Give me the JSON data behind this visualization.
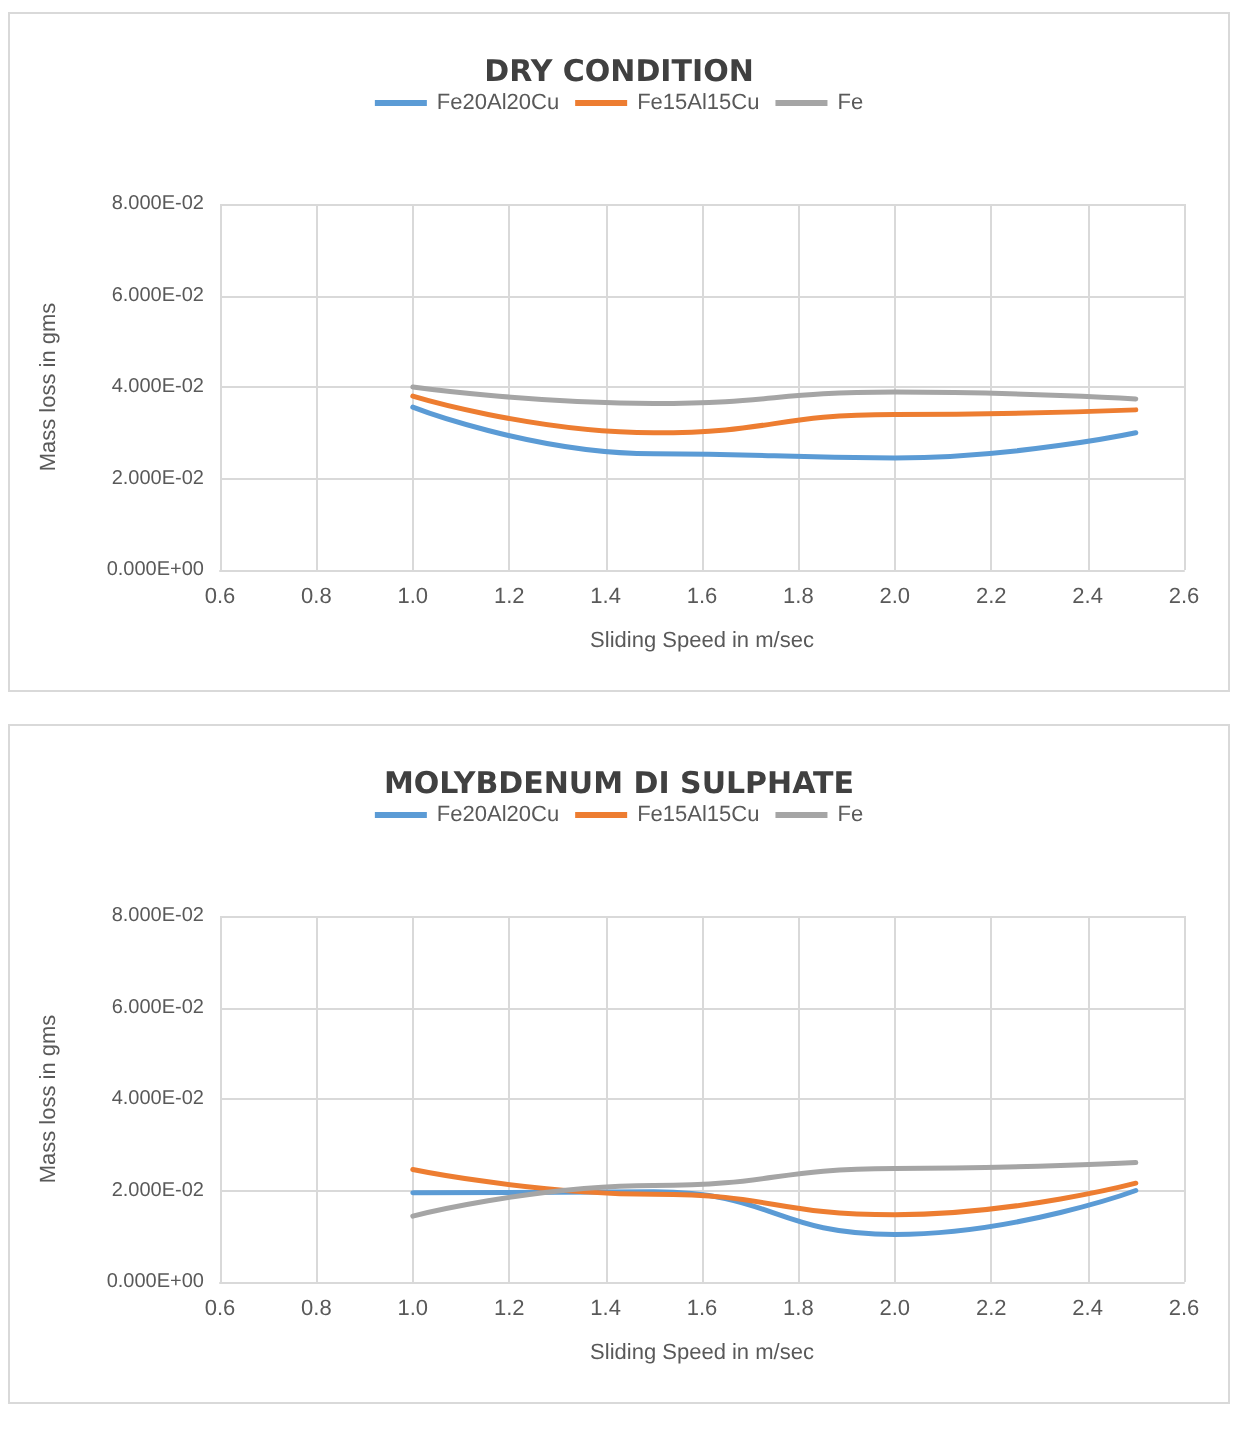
{
  "chart_data": [
    {
      "type": "line",
      "title": "DRY CONDITION",
      "xlabel": "Sliding Speed in m/sec",
      "ylabel": "Mass loss in gms",
      "x": [
        1.0,
        1.5,
        2.0,
        2.5
      ],
      "series": [
        {
          "name": "Fe20Al20Cu",
          "color": "#5b9bd5",
          "values": [
            0.0356,
            0.0254,
            0.0245,
            0.03
          ]
        },
        {
          "name": "Fe15Al15Cu",
          "color": "#ed7d31",
          "values": [
            0.038,
            0.03,
            0.034,
            0.035
          ]
        },
        {
          "name": "Fe",
          "color": "#a5a5a5",
          "values": [
            0.04,
            0.0364,
            0.0389,
            0.0374
          ]
        }
      ],
      "xlim": [
        0.6,
        2.6
      ],
      "xticks": [
        {
          "value": 0.6,
          "label": "0.6"
        },
        {
          "value": 0.8,
          "label": "0.8"
        },
        {
          "value": 1.0,
          "label": "1.0"
        },
        {
          "value": 1.2,
          "label": "1.2"
        },
        {
          "value": 1.4,
          "label": "1.4"
        },
        {
          "value": 1.6,
          "label": "1.6"
        },
        {
          "value": 1.8,
          "label": "1.8"
        },
        {
          "value": 2.0,
          "label": "2.0"
        },
        {
          "value": 2.2,
          "label": "2.2"
        },
        {
          "value": 2.4,
          "label": "2.4"
        },
        {
          "value": 2.6,
          "label": "2.6"
        }
      ],
      "ylim": [
        0,
        0.08
      ],
      "yticks": [
        {
          "value": 0,
          "label": "0.000E+00"
        },
        {
          "value": 0.02,
          "label": "2.000E-02"
        },
        {
          "value": 0.04,
          "label": "4.000E-02"
        },
        {
          "value": 0.06,
          "label": "6.000E-02"
        },
        {
          "value": 0.08,
          "label": "8.000E-02"
        }
      ],
      "grid": true,
      "legend": "top",
      "marker": "none",
      "line_style": "solid"
    },
    {
      "type": "line",
      "title": "MOLYBDENUM DI SULPHATE",
      "xlabel": "Sliding Speed in m/sec",
      "ylabel": "Mass loss in gms",
      "x": [
        1.0,
        1.5,
        2.0,
        2.5
      ],
      "series": [
        {
          "name": "Fe20Al20Cu",
          "color": "#5b9bd5",
          "values": [
            0.0195,
            0.0197,
            0.0104,
            0.02
          ]
        },
        {
          "name": "Fe15Al15Cu",
          "color": "#ed7d31",
          "values": [
            0.0246,
            0.0192,
            0.0147,
            0.0216
          ]
        },
        {
          "name": "Fe",
          "color": "#a5a5a5",
          "values": [
            0.0144,
            0.0211,
            0.0248,
            0.0261
          ]
        }
      ],
      "xlim": [
        0.6,
        2.6
      ],
      "xticks": [
        {
          "value": 0.6,
          "label": "0.6"
        },
        {
          "value": 0.8,
          "label": "0.8"
        },
        {
          "value": 1.0,
          "label": "1.0"
        },
        {
          "value": 1.2,
          "label": "1.2"
        },
        {
          "value": 1.4,
          "label": "1.4"
        },
        {
          "value": 1.6,
          "label": "1.6"
        },
        {
          "value": 1.8,
          "label": "1.8"
        },
        {
          "value": 2.0,
          "label": "2.0"
        },
        {
          "value": 2.2,
          "label": "2.2"
        },
        {
          "value": 2.4,
          "label": "2.4"
        },
        {
          "value": 2.6,
          "label": "2.6"
        }
      ],
      "ylim": [
        0,
        0.08
      ],
      "yticks": [
        {
          "value": 0,
          "label": "0.000E+00"
        },
        {
          "value": 0.02,
          "label": "2.000E-02"
        },
        {
          "value": 0.04,
          "label": "4.000E-02"
        },
        {
          "value": 0.06,
          "label": "6.000E-02"
        },
        {
          "value": 0.08,
          "label": "8.000E-02"
        }
      ],
      "grid": true,
      "legend": "top",
      "marker": "none",
      "line_style": "solid"
    }
  ]
}
